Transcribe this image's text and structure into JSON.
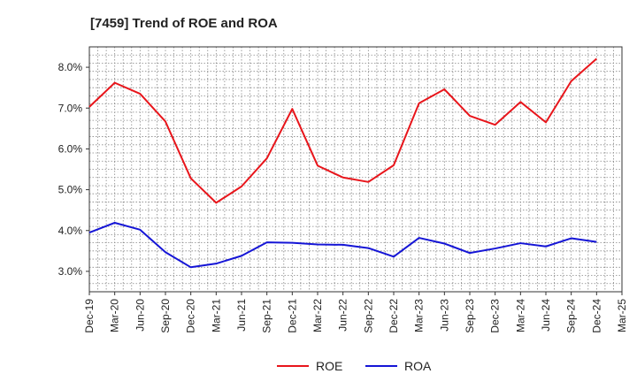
{
  "chart_data": {
    "type": "line",
    "title": "[7459]  Trend of ROE and ROA",
    "xlabel": "",
    "ylabel": "",
    "x_ticks": [
      "Dec-19",
      "Mar-20",
      "Jun-20",
      "Sep-20",
      "Dec-20",
      "Mar-21",
      "Jun-21",
      "Sep-21",
      "Dec-21",
      "Mar-22",
      "Jun-22",
      "Sep-22",
      "Dec-22",
      "Mar-23",
      "Jun-23",
      "Sep-23",
      "Dec-23",
      "Mar-24",
      "Jun-24",
      "Sep-24",
      "Dec-24",
      "Mar-25"
    ],
    "y_ticks": [
      "3.0%",
      "4.0%",
      "5.0%",
      "6.0%",
      "7.0%",
      "8.0%"
    ],
    "y_tick_values": [
      3.0,
      4.0,
      5.0,
      6.0,
      7.0,
      8.0
    ],
    "ylim": [
      2.5,
      8.5
    ],
    "grid": true,
    "legend_position": "bottom",
    "series": [
      {
        "name": "ROE",
        "color": "#e8151b",
        "x": [
          "Dec-19",
          "Mar-20",
          "Jun-20",
          "Sep-20",
          "Dec-20",
          "Mar-21",
          "Jun-21",
          "Sep-21",
          "Dec-21",
          "Mar-22",
          "Jun-22",
          "Sep-22",
          "Dec-22",
          "Mar-23",
          "Jun-23",
          "Sep-23",
          "Dec-23",
          "Mar-24",
          "Jun-24",
          "Sep-24",
          "Dec-24"
        ],
        "values": [
          7.03,
          7.62,
          7.35,
          6.67,
          5.28,
          4.68,
          5.08,
          5.77,
          6.98,
          5.59,
          5.3,
          5.19,
          5.6,
          7.12,
          7.46,
          6.81,
          6.59,
          7.15,
          6.65,
          7.66,
          8.21
        ]
      },
      {
        "name": "ROA",
        "color": "#1515d6",
        "x": [
          "Dec-19",
          "Mar-20",
          "Jun-20",
          "Sep-20",
          "Dec-20",
          "Mar-21",
          "Jun-21",
          "Sep-21",
          "Dec-21",
          "Mar-22",
          "Jun-22",
          "Sep-22",
          "Dec-22",
          "Mar-23",
          "Jun-23",
          "Sep-23",
          "Dec-23",
          "Mar-24",
          "Jun-24",
          "Sep-24",
          "Dec-24"
        ],
        "values": [
          3.95,
          4.19,
          4.02,
          3.47,
          3.1,
          3.19,
          3.38,
          3.71,
          3.7,
          3.66,
          3.65,
          3.57,
          3.36,
          3.82,
          3.68,
          3.45,
          3.56,
          3.69,
          3.61,
          3.81,
          3.72
        ]
      }
    ]
  }
}
